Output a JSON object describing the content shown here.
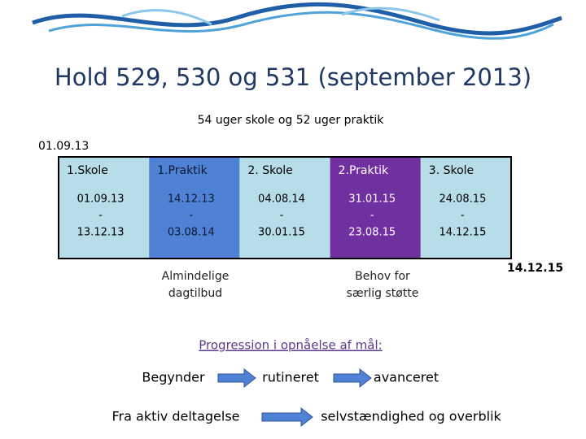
{
  "header": {
    "title": "Hold 529, 530 og 531 (september 2013)",
    "subtitle": "54 uger skole og 52 uger praktik"
  },
  "timeline": {
    "start": "01.09.13",
    "end": "14.12.15",
    "periods": [
      {
        "name": "1.Skole",
        "from": "01.09.13",
        "dash": "-",
        "to": "13.12.13",
        "color": "#b7dde8",
        "text_color": "#000000"
      },
      {
        "name": "1.Praktik",
        "from": "14.12.13",
        "dash": "-",
        "to": "03.08.14",
        "color": "#4f81d4",
        "text_color": "#0b1a33"
      },
      {
        "name": "2. Skole",
        "from": "04.08.14",
        "dash": "-",
        "to": "30.01.15",
        "color": "#b7dde8",
        "text_color": "#000000"
      },
      {
        "name": "2.Praktik",
        "from": "31.01.15",
        "dash": "-",
        "to": "23.08.15",
        "color": "#7030a0",
        "text_color": "#ffffff"
      },
      {
        "name": "3. Skole",
        "from": "24.08.15",
        "dash": "-",
        "to": "14.12.15",
        "color": "#b7dde8",
        "text_color": "#000000"
      }
    ],
    "notes": [
      {
        "lines": [
          "Almindelige",
          "dagtilbud"
        ]
      },
      {
        "lines": [
          "Behov for",
          "særlig støtte"
        ]
      }
    ]
  },
  "progression": {
    "title": "Progression i opnåelse af mål:",
    "row1": [
      "Begynder",
      "rutineret",
      "avanceret"
    ],
    "row2": [
      "Fra aktiv deltagelse",
      "selvstændighed og overblik"
    ]
  }
}
